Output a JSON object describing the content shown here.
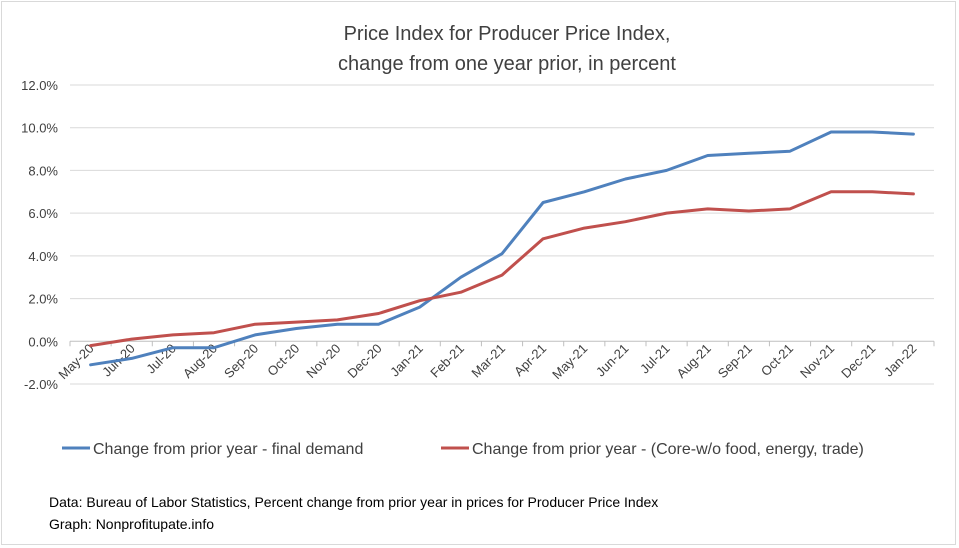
{
  "chart_data": {
    "type": "line",
    "title": [
      "Price Index for Producer Price Index,",
      "change from one year prior, in percent"
    ],
    "categories": [
      "May-20",
      "Jun-20",
      "Jul-20",
      "Aug-20",
      "Sep-20",
      "Oct-20",
      "Nov-20",
      "Dec-20",
      "Jan-21",
      "Feb-21",
      "Mar-21",
      "Apr-21",
      "May-21",
      "Jun-21",
      "Jul-21",
      "Aug-21",
      "Sep-21",
      "Oct-21",
      "Nov-21",
      "Dec-21",
      "Jan-22"
    ],
    "series": [
      {
        "name": "Change from prior year -  final demand",
        "color": "#4f81bd",
        "values": [
          -1.1,
          -0.8,
          -0.3,
          -0.3,
          0.3,
          0.6,
          0.8,
          0.8,
          1.6,
          3.0,
          4.1,
          6.5,
          7.0,
          7.6,
          8.0,
          8.7,
          8.8,
          8.9,
          9.8,
          9.8,
          9.7
        ]
      },
      {
        "name": "Change from prior year -  (Core-w/o food, energy, trade)",
        "color": "#c0504d",
        "values": [
          -0.2,
          0.1,
          0.3,
          0.4,
          0.8,
          0.9,
          1.0,
          1.3,
          1.9,
          2.3,
          3.1,
          4.8,
          5.3,
          5.6,
          6.0,
          6.2,
          6.1,
          6.2,
          7.0,
          7.0,
          6.9
        ]
      }
    ],
    "ylim": [
      -2,
      12
    ],
    "yticks": [
      -2,
      0,
      2,
      4,
      6,
      8,
      10,
      12
    ],
    "ytick_labels": [
      "-2.0%",
      "0.0%",
      "2.0%",
      "4.0%",
      "6.0%",
      "8.0%",
      "10.0%",
      "12.0%"
    ],
    "grid": true,
    "legend_position": "bottom"
  },
  "source": {
    "line1": "Data: Bureau of Labor Statistics, Percent change from prior year in prices for Producer Price Index",
    "line2": "Graph:  Nonprofitupate.info"
  }
}
